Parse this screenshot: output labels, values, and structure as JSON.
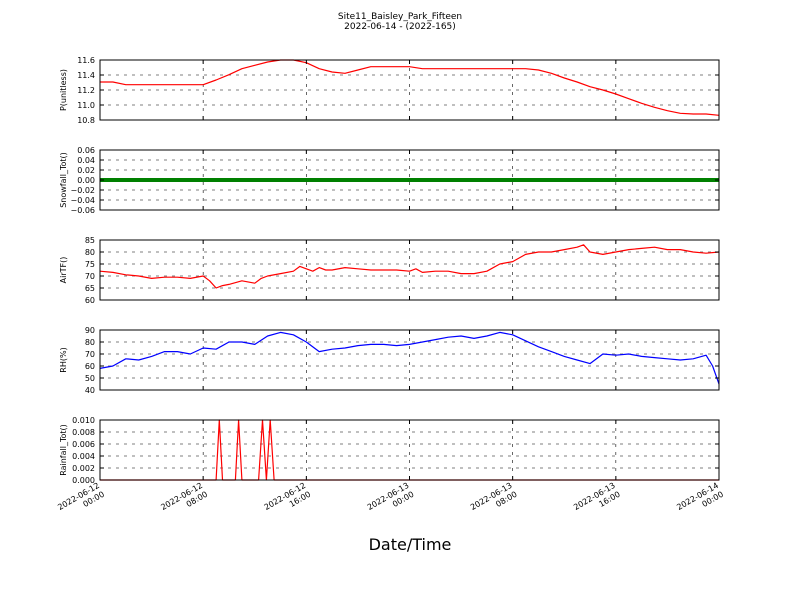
{
  "figure": {
    "title_line1": "Site11_Baisley_Park_Fifteen",
    "title_line2": "2022-06-14 - (2022-165)",
    "xlabel": "Date/Time",
    "x_ticks": [
      {
        "line1": "2022-06-12",
        "line2": "00:00"
      },
      {
        "line1": "2022-06-12",
        "line2": "08:00"
      },
      {
        "line1": "2022-06-12",
        "line2": "16:00"
      },
      {
        "line1": "2022-06-13",
        "line2": "00:00"
      },
      {
        "line1": "2022-06-13",
        "line2": "08:00"
      },
      {
        "line1": "2022-06-13",
        "line2": "16:00"
      },
      {
        "line1": "2022-06-14",
        "line2": "00:00"
      }
    ]
  },
  "chart_data": [
    {
      "type": "line",
      "ylabel": "P(unitless)",
      "ylim": [
        10.7,
        11.6
      ],
      "yticks": [
        "11.6",
        "11.4",
        "11.2",
        "11.0",
        "10.8"
      ],
      "grid": true,
      "color": "#ff0000",
      "x_hours": [
        0,
        1,
        2,
        3,
        4,
        5,
        6,
        7,
        8,
        9,
        10,
        11,
        12,
        13,
        14,
        15,
        16,
        17,
        18,
        19,
        20,
        21,
        22,
        23,
        24,
        25,
        26,
        27,
        28,
        29,
        30,
        31,
        32,
        33,
        34,
        35,
        36,
        37,
        38,
        39,
        40,
        41,
        42,
        43,
        44,
        45,
        46,
        47,
        48
      ],
      "values": [
        11.27,
        11.27,
        11.23,
        11.23,
        11.23,
        11.23,
        11.23,
        11.23,
        11.23,
        11.3,
        11.38,
        11.47,
        11.52,
        11.57,
        11.6,
        11.6,
        11.56,
        11.47,
        11.42,
        11.4,
        11.45,
        11.5,
        11.5,
        11.5,
        11.5,
        11.47,
        11.47,
        11.47,
        11.47,
        11.47,
        11.47,
        11.47,
        11.47,
        11.47,
        11.45,
        11.4,
        11.33,
        11.27,
        11.2,
        11.15,
        11.09,
        11.02,
        10.95,
        10.89,
        10.84,
        10.8,
        10.79,
        10.79,
        10.77
      ]
    },
    {
      "type": "line",
      "ylabel": "Snowfall_Tot()",
      "ylim": [
        -0.06,
        0.06
      ],
      "yticks": [
        "0.06",
        "0.04",
        "0.02",
        "0.00",
        "−0.02",
        "−0.04",
        "−0.06"
      ],
      "grid": true,
      "color": "#008000",
      "x_hours": [
        0,
        48
      ],
      "values": [
        0,
        0
      ]
    },
    {
      "type": "line",
      "ylabel": "AirTF()",
      "ylim": [
        60,
        85
      ],
      "yticks": [
        "85",
        "80",
        "75",
        "70",
        "65",
        "60"
      ],
      "grid": true,
      "color": "#ff0000",
      "x_hours": [
        0,
        1,
        2,
        3,
        4,
        5,
        6,
        7,
        8,
        8.5,
        9,
        9.5,
        10,
        11,
        12,
        12.5,
        13,
        14,
        15,
        15.5,
        16,
        16.5,
        17,
        17.5,
        18,
        19,
        20,
        21,
        22,
        23,
        24,
        24.5,
        25,
        26,
        27,
        28,
        29,
        30,
        31,
        32,
        33,
        34,
        35,
        36,
        37,
        37.5,
        38,
        39,
        40,
        41,
        42,
        43,
        44,
        45,
        46,
        47,
        48
      ],
      "values": [
        72,
        71.5,
        70.5,
        70,
        69,
        69.5,
        69.5,
        69,
        70,
        68,
        65,
        66,
        66.5,
        68,
        67,
        69,
        70,
        71,
        72,
        74,
        73,
        72,
        73.5,
        72.5,
        72.5,
        73.5,
        73,
        72.5,
        72.5,
        72.5,
        72,
        73,
        71.5,
        72,
        72,
        71,
        71,
        72,
        75,
        76,
        79,
        80,
        80,
        81,
        82,
        83,
        80,
        79,
        80,
        81,
        81.5,
        82,
        81,
        81,
        80,
        79.5,
        80
      ]
    },
    {
      "type": "line",
      "ylabel": "RH(%)",
      "ylim": [
        40,
        90
      ],
      "yticks": [
        "90",
        "80",
        "70",
        "60",
        "50",
        "40"
      ],
      "grid": true,
      "color": "#0000ff",
      "x_hours": [
        0,
        1,
        2,
        3,
        4,
        5,
        6,
        7,
        8,
        9,
        10,
        11,
        12,
        13,
        14,
        15,
        16,
        17,
        18,
        19,
        20,
        21,
        22,
        23,
        24,
        25,
        26,
        27,
        28,
        29,
        30,
        31,
        32,
        33,
        34,
        35,
        36,
        37,
        38,
        39,
        40,
        41,
        42,
        43,
        44,
        45,
        46,
        47,
        47.5,
        48
      ],
      "values": [
        58,
        60,
        66,
        65,
        68,
        72,
        72,
        70,
        75,
        74,
        80,
        80,
        78,
        85,
        88,
        86,
        80,
        72,
        74,
        75,
        77,
        78,
        78,
        77,
        78,
        80,
        82,
        84,
        85,
        83,
        85,
        88,
        86,
        81,
        76,
        72,
        68,
        65,
        62,
        70,
        69,
        70,
        68,
        67,
        66,
        65,
        66,
        69,
        60,
        45
      ]
    },
    {
      "type": "line",
      "ylabel": "Rainfall_Tot()",
      "ylim": [
        0.0,
        0.01
      ],
      "yticks": [
        "0.010",
        "0.008",
        "0.006",
        "0.004",
        "0.002",
        "0.000"
      ],
      "grid": true,
      "color": "#ff0000",
      "x_hours": [
        0,
        9,
        9.25,
        9.5,
        10.5,
        10.75,
        11,
        12.3,
        12.6,
        12.9,
        13.2,
        13.5,
        48
      ],
      "values": [
        0,
        0,
        0.01,
        0,
        0,
        0.01,
        0,
        0,
        0.01,
        0,
        0.01,
        0,
        0
      ]
    }
  ]
}
